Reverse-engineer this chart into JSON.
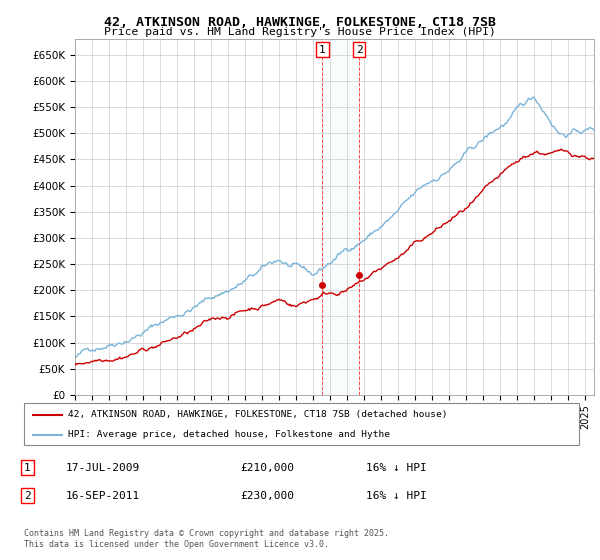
{
  "title_line1": "42, ATKINSON ROAD, HAWKINGE, FOLKESTONE, CT18 7SB",
  "title_line2": "Price paid vs. HM Land Registry's House Price Index (HPI)",
  "ylim": [
    0,
    680000
  ],
  "yticks": [
    0,
    50000,
    100000,
    150000,
    200000,
    250000,
    300000,
    350000,
    400000,
    450000,
    500000,
    550000,
    600000,
    650000
  ],
  "ytick_labels": [
    "£0",
    "£50K",
    "£100K",
    "£150K",
    "£200K",
    "£250K",
    "£300K",
    "£350K",
    "£400K",
    "£450K",
    "£500K",
    "£550K",
    "£600K",
    "£650K"
  ],
  "hpi_color": "#7ab4d8",
  "price_color": "#cc0000",
  "grid_color": "#cccccc",
  "sale1_date": 2009.54,
  "sale1_price": 210000,
  "sale2_date": 2011.71,
  "sale2_price": 230000,
  "legend_label1": "42, ATKINSON ROAD, HAWKINGE, FOLKESTONE, CT18 7SB (detached house)",
  "legend_label2": "HPI: Average price, detached house, Folkestone and Hythe",
  "copyright": "Contains HM Land Registry data © Crown copyright and database right 2025.\nThis data is licensed under the Open Government Licence v3.0.",
  "xstart": 1995,
  "xend": 2025.5
}
